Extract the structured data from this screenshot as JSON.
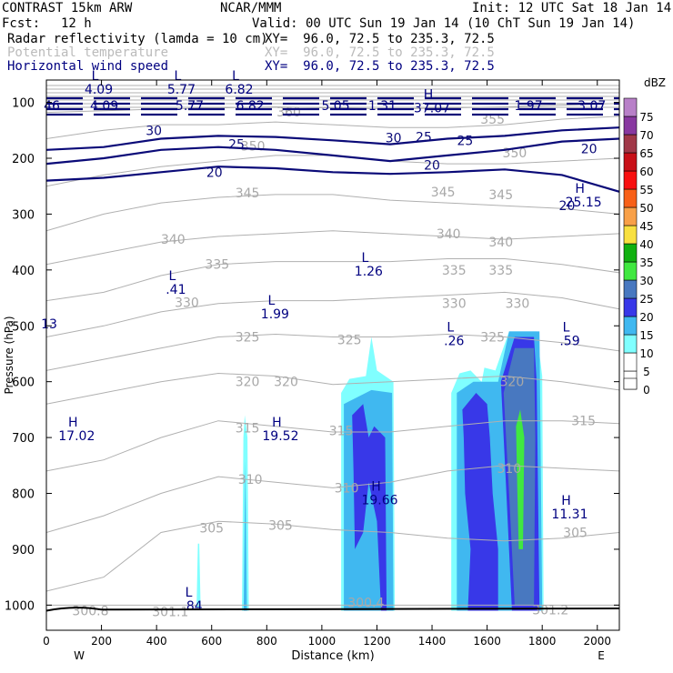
{
  "header": {
    "model": "CONTRAST 15km ARW",
    "org": "NCAR/MMM",
    "init": "Init: 12 UTC Sat 18 Jan 14",
    "fcst_label": "Fcst:",
    "fcst_value": "12 h",
    "valid": "Valid: 00 UTC Sun 19 Jan 14 (10 ChT Sun 19 Jan 14)",
    "fields": [
      {
        "name": "Radar reflectivity (lamda = 10 cm)",
        "xy": "XY=  96.0, 72.5 to 235.3, 72.5",
        "color": "#000000"
      },
      {
        "name": "Potential temperature",
        "xy": "XY=  96.0, 72.5 to 235.3, 72.5",
        "color": "#bbbbbb"
      },
      {
        "name": "Horizontal wind speed",
        "xy": "XY=  96.0, 72.5 to 235.3, 72.5",
        "color": "#000080"
      }
    ]
  },
  "chart_data": {
    "type": "contour",
    "xlabel": "Distance (km)",
    "ylabel": "Pressure (hPa)",
    "xlim": [
      0,
      2080
    ],
    "ylim": [
      1045,
      60
    ],
    "x_ticks": [
      0,
      200,
      400,
      600,
      800,
      1000,
      1200,
      1400,
      1600,
      1800,
      2000
    ],
    "y_ticks": [
      100,
      200,
      300,
      400,
      500,
      600,
      700,
      800,
      900,
      1000
    ],
    "x_end_labels": {
      "left": "W",
      "right": "E"
    },
    "colorbar": {
      "unit": "dBZ",
      "levels": [
        0,
        5,
        10,
        15,
        20,
        25,
        30,
        35,
        40,
        45,
        50,
        55,
        60,
        65,
        70,
        75
      ],
      "colors": [
        "#ffffff",
        "#ffffff",
        "#80ffff",
        "#40b8f0",
        "#3838e8",
        "#4878c0",
        "#40e840",
        "#10b010",
        "#f8e040",
        "#f8a048",
        "#f86018",
        "#f81010",
        "#c81018",
        "#a03848",
        "#8838a0",
        "#b880c8"
      ]
    },
    "theta_contours": [
      {
        "value": 300,
        "p": [
          1000,
          1000,
          1000,
          1000,
          1000,
          1000
        ]
      },
      {
        "value": 305,
        "p": [
          975,
          950,
          870,
          850,
          855,
          865,
          870,
          880,
          885,
          880,
          870
        ]
      },
      {
        "value": 310,
        "p": [
          870,
          840,
          800,
          770,
          780,
          790,
          780,
          760,
          750,
          755,
          760
        ]
      },
      {
        "value": 315,
        "p": [
          760,
          740,
          700,
          670,
          680,
          690,
          690,
          680,
          670,
          670,
          675
        ]
      },
      {
        "value": 320,
        "p": [
          640,
          620,
          600,
          585,
          590,
          605,
          600,
          595,
          590,
          600,
          615
        ]
      },
      {
        "value": 325,
        "p": [
          580,
          560,
          540,
          520,
          515,
          520,
          520,
          515,
          520,
          530,
          545
        ]
      },
      {
        "value": 330,
        "p": [
          520,
          500,
          475,
          460,
          455,
          455,
          450,
          445,
          440,
          450,
          470
        ]
      },
      {
        "value": 335,
        "p": [
          455,
          440,
          410,
          390,
          385,
          385,
          385,
          380,
          380,
          390,
          405
        ]
      },
      {
        "value": 340,
        "p": [
          390,
          370,
          350,
          340,
          335,
          330,
          335,
          340,
          345,
          340,
          335
        ]
      },
      {
        "value": 345,
        "p": [
          330,
          300,
          280,
          270,
          265,
          265,
          275,
          280,
          285,
          290,
          300
        ]
      },
      {
        "value": 350,
        "p": [
          250,
          230,
          215,
          205,
          195,
          195,
          205,
          210,
          210,
          205,
          200
        ]
      },
      {
        "value": 355,
        "p": [
          165,
          150,
          140,
          140,
          135,
          140,
          145,
          145,
          140,
          130,
          125
        ]
      },
      {
        "value": 360,
        "p": [
          118,
          115,
          112,
          110,
          108,
          110,
          112,
          110,
          108,
          105,
          102
        ]
      }
    ],
    "theta_labels": [
      {
        "text": "360",
        "x": 880,
        "p": 117
      },
      {
        "text": "355",
        "x": 1620,
        "p": 130
      },
      {
        "text": "350",
        "x": 750,
        "p": 178
      },
      {
        "text": "350",
        "x": 1700,
        "p": 190
      },
      {
        "text": "345",
        "x": 730,
        "p": 262
      },
      {
        "text": "345",
        "x": 1440,
        "p": 260
      },
      {
        "text": "345",
        "x": 1650,
        "p": 265
      },
      {
        "text": "340",
        "x": 460,
        "p": 345
      },
      {
        "text": "340",
        "x": 1460,
        "p": 335
      },
      {
        "text": "340",
        "x": 1650,
        "p": 350
      },
      {
        "text": "335",
        "x": 620,
        "p": 390
      },
      {
        "text": "335",
        "x": 1480,
        "p": 400
      },
      {
        "text": "335",
        "x": 1650,
        "p": 400
      },
      {
        "text": "330",
        "x": 510,
        "p": 458
      },
      {
        "text": "330",
        "x": 1480,
        "p": 460
      },
      {
        "text": "330",
        "x": 1710,
        "p": 460
      },
      {
        "text": "325",
        "x": 730,
        "p": 520
      },
      {
        "text": "325",
        "x": 1100,
        "p": 525
      },
      {
        "text": "325",
        "x": 1620,
        "p": 520
      },
      {
        "text": "320",
        "x": 730,
        "p": 600
      },
      {
        "text": "320",
        "x": 870,
        "p": 600
      },
      {
        "text": "320",
        "x": 1690,
        "p": 600
      },
      {
        "text": "315",
        "x": 730,
        "p": 683
      },
      {
        "text": "315",
        "x": 1070,
        "p": 688
      },
      {
        "text": "315",
        "x": 1950,
        "p": 670
      },
      {
        "text": "310",
        "x": 740,
        "p": 775
      },
      {
        "text": "310",
        "x": 1090,
        "p": 790
      },
      {
        "text": "310",
        "x": 1680,
        "p": 755
      },
      {
        "text": "305",
        "x": 600,
        "p": 862
      },
      {
        "text": "305",
        "x": 850,
        "p": 857
      },
      {
        "text": "305",
        "x": 1920,
        "p": 870
      },
      {
        "text": "300.8",
        "x": 160,
        "p": 1010
      },
      {
        "text": "301.1",
        "x": 450,
        "p": 1012
      },
      {
        "text": "300.4",
        "x": 1160,
        "p": 995
      },
      {
        "text": "301.2",
        "x": 1830,
        "p": 1008
      }
    ],
    "wind_contours": [
      {
        "value": 30,
        "p": [
          185,
          180,
          165,
          160,
          162,
          168,
          175,
          165,
          160,
          150,
          145
        ]
      },
      {
        "value": 25,
        "p": [
          210,
          200,
          185,
          180,
          185,
          195,
          205,
          195,
          185,
          170,
          165
        ]
      },
      {
        "value": 20,
        "p": [
          240,
          235,
          225,
          215,
          218,
          225,
          228,
          225,
          220,
          230,
          260
        ]
      }
    ],
    "wind_labels": [
      {
        "text": "30",
        "x": 390,
        "p": 150
      },
      {
        "text": "30",
        "x": 1260,
        "p": 163
      },
      {
        "text": "25",
        "x": 690,
        "p": 175
      },
      {
        "text": "25",
        "x": 1370,
        "p": 162
      },
      {
        "text": "25",
        "x": 1520,
        "p": 168
      },
      {
        "text": "20",
        "x": 610,
        "p": 225
      },
      {
        "text": "20",
        "x": 1400,
        "p": 212
      },
      {
        "text": "20",
        "x": 1890,
        "p": 285
      },
      {
        "text": "20",
        "x": 1970,
        "p": 183
      }
    ],
    "jet_values": [
      "46",
      "4.09",
      "5.77",
      "6.82",
      "5.05",
      "1.31",
      "1.97",
      "3.07"
    ],
    "jet_value_x": [
      20,
      210,
      520,
      740,
      1050,
      1220,
      1750,
      1980
    ],
    "extrema": [
      {
        "kind": "L",
        "value": "4.09",
        "x": 190,
        "p": 60
      },
      {
        "kind": "L",
        "value": "5.77",
        "x": 490,
        "p": 60
      },
      {
        "kind": "L",
        "value": "6.82",
        "x": 700,
        "p": 60
      },
      {
        "kind": "H",
        "value": "37.07",
        "x": 1400,
        "p": 93
      },
      {
        "kind": "H",
        "value": "25.15",
        "x": 1950,
        "p": 262
      },
      {
        "kind": "L",
        "value": "1.26",
        "x": 1170,
        "p": 386
      },
      {
        "kind": "L",
        "value": ".41",
        "x": 470,
        "p": 418
      },
      {
        "kind": "L",
        "value": "1.99",
        "x": 830,
        "p": 462
      },
      {
        "kind": "L",
        "value": ".26",
        "x": 1480,
        "p": 510
      },
      {
        "kind": "L",
        "value": ".59",
        "x": 1900,
        "p": 510
      },
      {
        "kind": "",
        "value": "13",
        "x": 10,
        "p": 480
      },
      {
        "kind": "H",
        "value": "17.02",
        "x": 110,
        "p": 680
      },
      {
        "kind": "H",
        "value": "19.52",
        "x": 850,
        "p": 680
      },
      {
        "kind": "H",
        "value": "19.66",
        "x": 1210,
        "p": 795
      },
      {
        "kind": "H",
        "value": "11.31",
        "x": 1900,
        "p": 820
      },
      {
        "kind": "L",
        "value": ".84",
        "x": 530,
        "p": 985
      }
    ],
    "reflectivity_cells": [
      {
        "dbz": 10,
        "poly": [
          [
            555,
            890
          ],
          [
            560,
            1005
          ],
          [
            545,
            1005
          ],
          [
            550,
            890
          ]
        ]
      },
      {
        "dbz": 10,
        "poly": [
          [
            720,
            660
          ],
          [
            730,
            700
          ],
          [
            735,
            1010
          ],
          [
            710,
            1010
          ],
          [
            715,
            700
          ]
        ]
      },
      {
        "dbz": 15,
        "poly": [
          [
            722,
            740
          ],
          [
            728,
            1010
          ],
          [
            716,
            1010
          ]
        ]
      },
      {
        "dbz": 10,
        "poly": [
          [
            1070,
            620
          ],
          [
            1100,
            595
          ],
          [
            1160,
            590
          ],
          [
            1180,
            520
          ],
          [
            1200,
            580
          ],
          [
            1260,
            600
          ],
          [
            1265,
            1010
          ],
          [
            1070,
            1010
          ]
        ]
      },
      {
        "dbz": 15,
        "poly": [
          [
            1080,
            640
          ],
          [
            1180,
            615
          ],
          [
            1255,
            620
          ],
          [
            1260,
            1010
          ],
          [
            1080,
            1010
          ]
        ]
      },
      {
        "dbz": 20,
        "poly": [
          [
            1110,
            660
          ],
          [
            1150,
            640
          ],
          [
            1170,
            700
          ],
          [
            1190,
            680
          ],
          [
            1230,
            700
          ],
          [
            1235,
            1010
          ],
          [
            1215,
            1010
          ],
          [
            1200,
            850
          ],
          [
            1170,
            780
          ],
          [
            1150,
            870
          ],
          [
            1120,
            900
          ],
          [
            1115,
            760
          ]
        ]
      },
      {
        "dbz": 10,
        "poly": [
          [
            1470,
            620
          ],
          [
            1500,
            585
          ],
          [
            1540,
            580
          ],
          [
            1580,
            600
          ],
          [
            1590,
            575
          ],
          [
            1630,
            580
          ],
          [
            1680,
            510
          ],
          [
            1780,
            510
          ],
          [
            1800,
            590
          ],
          [
            1805,
            1010
          ],
          [
            1470,
            1010
          ]
        ]
      },
      {
        "dbz": 15,
        "poly": [
          [
            1490,
            620
          ],
          [
            1550,
            600
          ],
          [
            1600,
            600
          ],
          [
            1640,
            600
          ],
          [
            1680,
            510
          ],
          [
            1790,
            510
          ],
          [
            1800,
            1010
          ],
          [
            1490,
            1010
          ]
        ]
      },
      {
        "dbz": 20,
        "poly": [
          [
            1510,
            650
          ],
          [
            1560,
            620
          ],
          [
            1600,
            640
          ],
          [
            1610,
            700
          ],
          [
            1620,
            800
          ],
          [
            1640,
            900
          ],
          [
            1640,
            1010
          ],
          [
            1530,
            1010
          ],
          [
            1540,
            900
          ],
          [
            1520,
            800
          ],
          [
            1515,
            700
          ]
        ]
      },
      {
        "dbz": 20,
        "poly": [
          [
            1650,
            600
          ],
          [
            1700,
            520
          ],
          [
            1770,
            520
          ],
          [
            1780,
            600
          ],
          [
            1790,
            1010
          ],
          [
            1690,
            1010
          ],
          [
            1670,
            800
          ]
        ]
      },
      {
        "dbz": 25,
        "poly": [
          [
            1660,
            620
          ],
          [
            1700,
            540
          ],
          [
            1770,
            540
          ],
          [
            1775,
            700
          ],
          [
            1770,
            1000
          ],
          [
            1700,
            1000
          ],
          [
            1680,
            800
          ]
        ]
      },
      {
        "dbz": 30,
        "poly": [
          [
            1705,
            680
          ],
          [
            1720,
            650
          ],
          [
            1735,
            700
          ],
          [
            1730,
            900
          ],
          [
            1715,
            900
          ],
          [
            1710,
            800
          ]
        ]
      }
    ]
  }
}
